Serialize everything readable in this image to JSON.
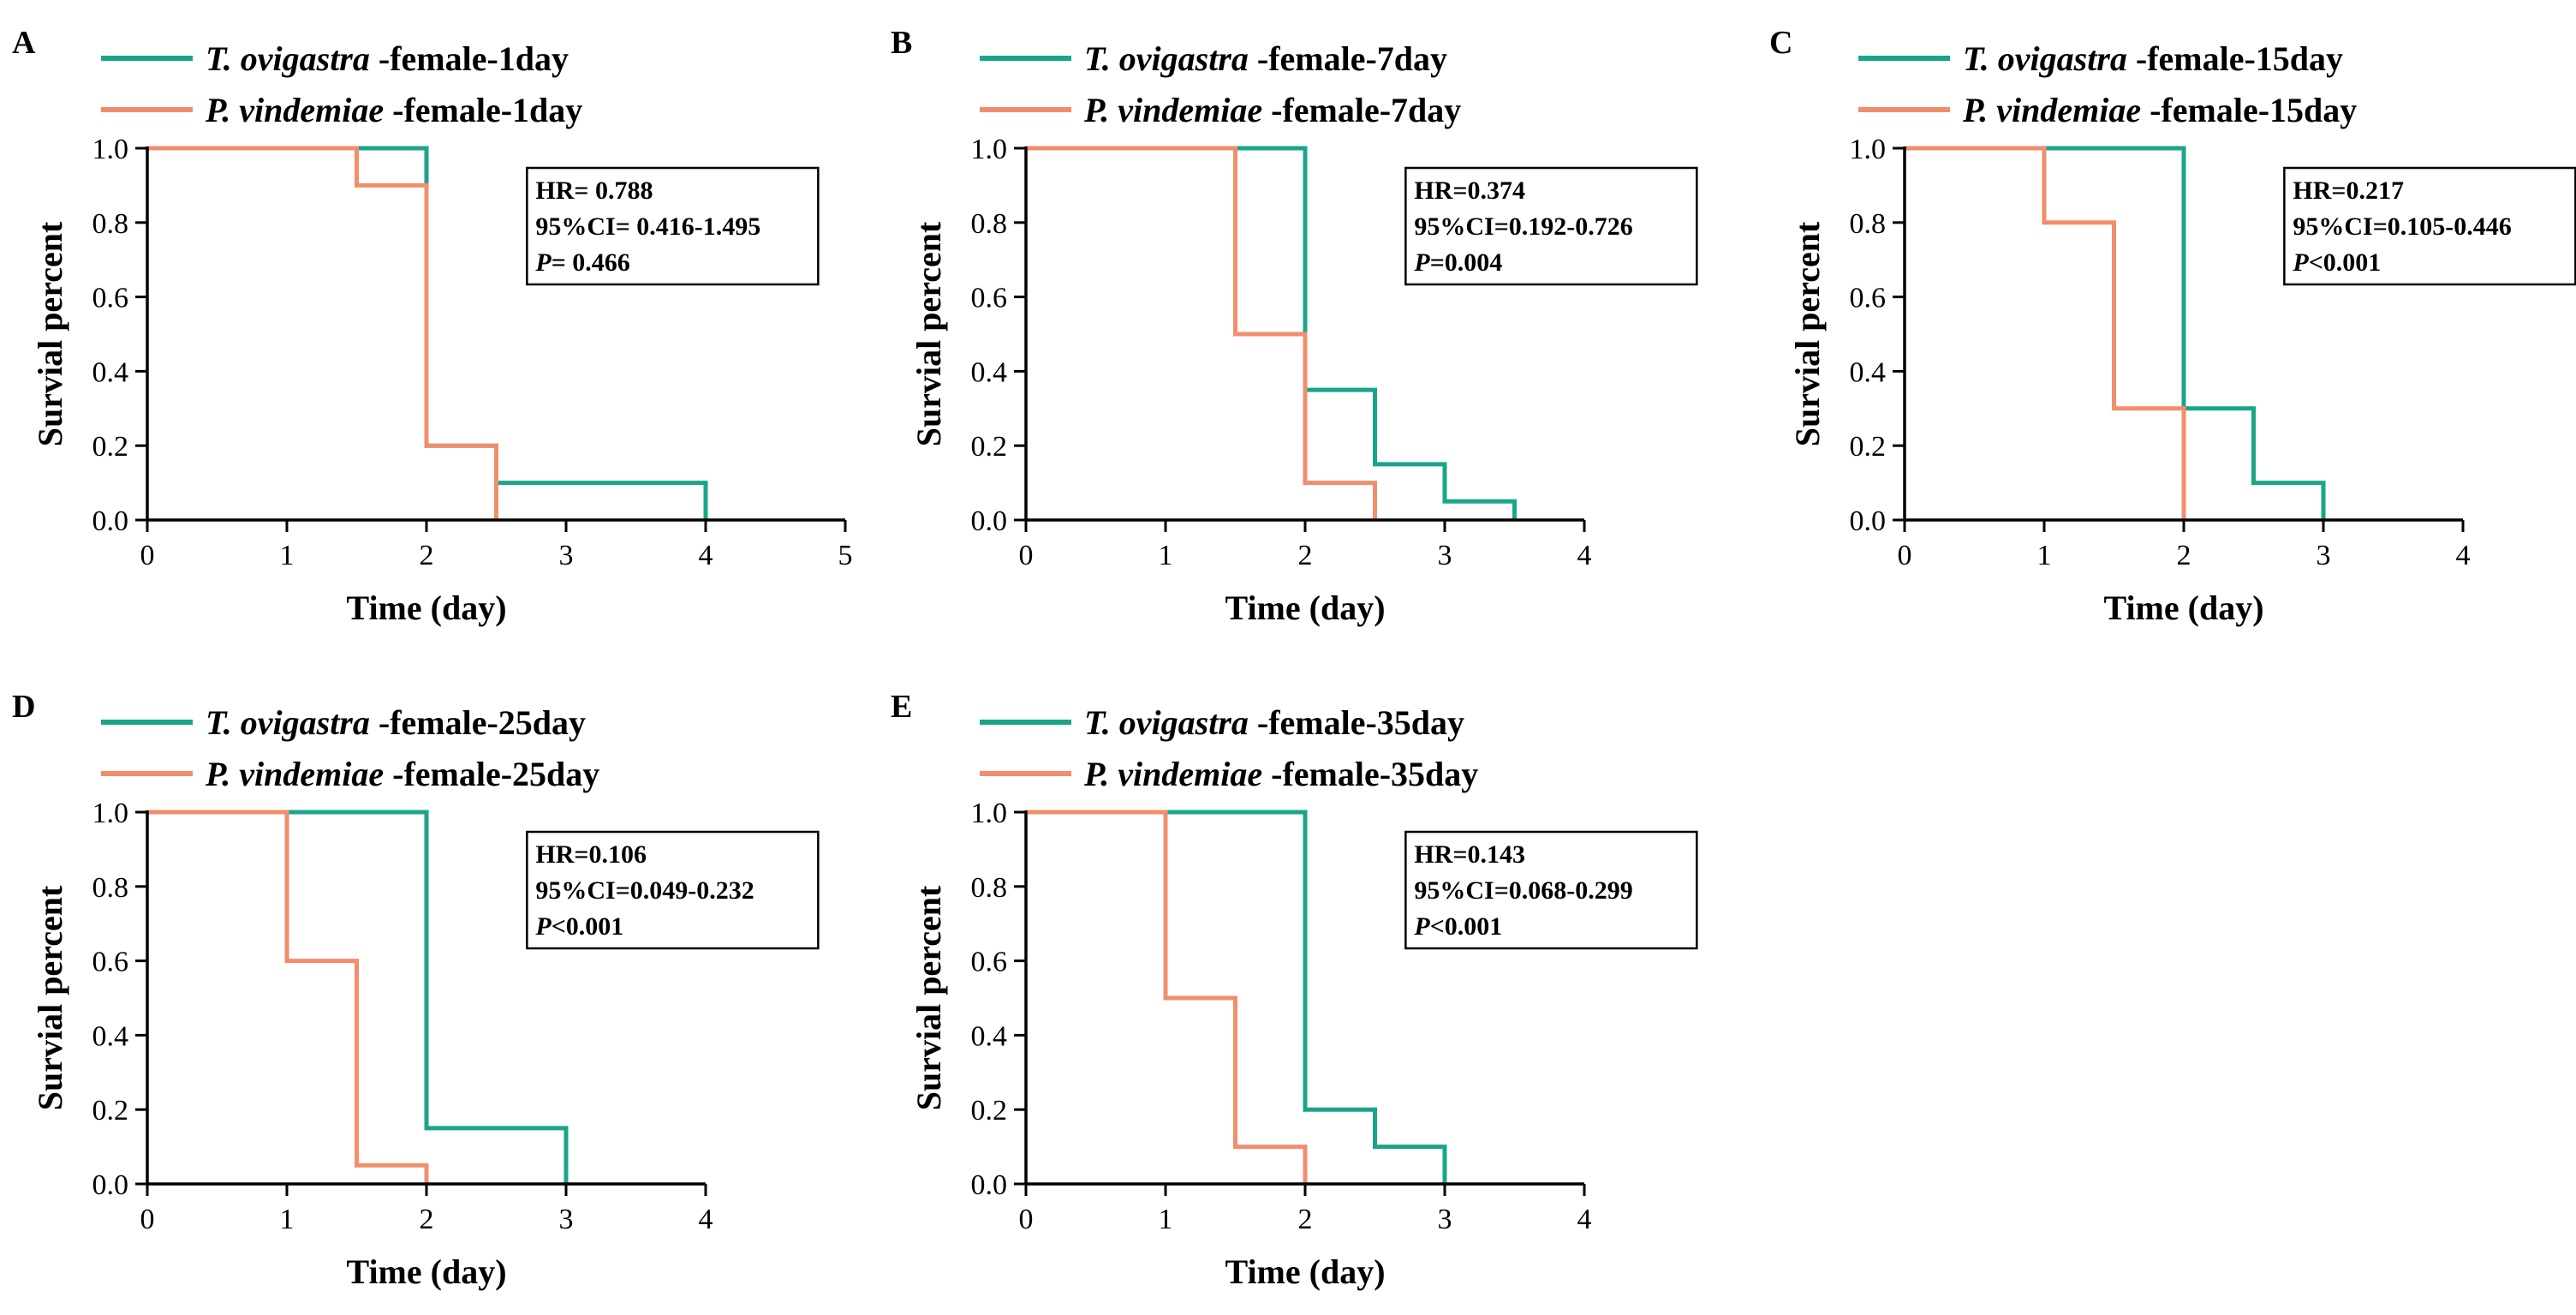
{
  "colors": {
    "teal": "#1aa58a",
    "orange": "#f28e6e",
    "axis": "#000000"
  },
  "chart_data": [
    {
      "panel": "A",
      "type": "line",
      "step": true,
      "xlabel": "Time (day)",
      "ylabel": "Survial percent",
      "xlim": [
        0,
        5
      ],
      "ylim": [
        0,
        1
      ],
      "xticks": [
        "0",
        "1",
        "2",
        "3",
        "4",
        "5"
      ],
      "yticks": [
        "0.0",
        "0.2",
        "0.4",
        "0.6",
        "0.8",
        "1.0"
      ],
      "stats": {
        "hr": "HR= 0.788",
        "ci": "95%CI= 0.416-1.495",
        "p_label": "P",
        "p_value": "= 0.466"
      },
      "series": [
        {
          "name_italic": "T. ovigastra",
          "name_rest": " -female-1day",
          "color": "teal",
          "points": [
            [
              0,
              1
            ],
            [
              2,
              1
            ],
            [
              2,
              0.2
            ],
            [
              2.5,
              0.2
            ],
            [
              2.5,
              0.1
            ],
            [
              4,
              0.1
            ],
            [
              4,
              0
            ]
          ]
        },
        {
          "name_italic": "P. vindemiae",
          "name_rest": " -female-1day",
          "color": "orange",
          "points": [
            [
              0,
              1
            ],
            [
              1.5,
              1
            ],
            [
              1.5,
              0.9
            ],
            [
              2,
              0.9
            ],
            [
              2,
              0.2
            ],
            [
              2.5,
              0.2
            ],
            [
              2.5,
              0
            ]
          ]
        }
      ]
    },
    {
      "panel": "B",
      "type": "line",
      "step": true,
      "xlabel": "Time (day)",
      "ylabel": "Survial percent",
      "xlim": [
        0,
        4
      ],
      "ylim": [
        0,
        1
      ],
      "xticks": [
        "0",
        "1",
        "2",
        "3",
        "4"
      ],
      "yticks": [
        "0.0",
        "0.2",
        "0.4",
        "0.6",
        "0.8",
        "1.0"
      ],
      "stats": {
        "hr": "HR=0.374",
        "ci": "95%CI=0.192-0.726",
        "p_label": "P",
        "p_value": "=0.004"
      },
      "series": [
        {
          "name_italic": "T. ovigastra",
          "name_rest": " -female-7day",
          "color": "teal",
          "points": [
            [
              0,
              1
            ],
            [
              2,
              1
            ],
            [
              2,
              0.35
            ],
            [
              2.5,
              0.35
            ],
            [
              2.5,
              0.15
            ],
            [
              3,
              0.15
            ],
            [
              3,
              0.05
            ],
            [
              3.5,
              0.05
            ],
            [
              3.5,
              0
            ]
          ]
        },
        {
          "name_italic": "P. vindemiae",
          "name_rest": " -female-7day",
          "color": "orange",
          "points": [
            [
              0,
              1
            ],
            [
              1.5,
              1
            ],
            [
              1.5,
              0.5
            ],
            [
              2,
              0.5
            ],
            [
              2,
              0.1
            ],
            [
              2.5,
              0.1
            ],
            [
              2.5,
              0
            ]
          ]
        }
      ]
    },
    {
      "panel": "C",
      "type": "line",
      "step": true,
      "xlabel": "Time (day)",
      "ylabel": "Survial percent",
      "xlim": [
        0,
        4
      ],
      "ylim": [
        0,
        1
      ],
      "xticks": [
        "0",
        "1",
        "2",
        "3",
        "4"
      ],
      "yticks": [
        "0.0",
        "0.2",
        "0.4",
        "0.6",
        "0.8",
        "1.0"
      ],
      "stats": {
        "hr": "HR=0.217",
        "ci": "95%CI=0.105-0.446",
        "p_label": "P",
        "p_value": "<0.001"
      },
      "series": [
        {
          "name_italic": "T. ovigastra",
          "name_rest": " -female-15day",
          "color": "teal",
          "points": [
            [
              0,
              1
            ],
            [
              2,
              1
            ],
            [
              2,
              0.3
            ],
            [
              2.5,
              0.3
            ],
            [
              2.5,
              0.1
            ],
            [
              3,
              0.1
            ],
            [
              3,
              0
            ]
          ]
        },
        {
          "name_italic": "P. vindemiae",
          "name_rest": " -female-15day",
          "color": "orange",
          "points": [
            [
              0,
              1
            ],
            [
              1,
              1
            ],
            [
              1,
              0.8
            ],
            [
              1.5,
              0.8
            ],
            [
              1.5,
              0.3
            ],
            [
              2,
              0.3
            ],
            [
              2,
              0
            ]
          ]
        }
      ]
    },
    {
      "panel": "D",
      "type": "line",
      "step": true,
      "xlabel": "Time (day)",
      "ylabel": "Survial percent",
      "xlim": [
        0,
        4
      ],
      "ylim": [
        0,
        1
      ],
      "xticks": [
        "0",
        "1",
        "2",
        "3",
        "4"
      ],
      "yticks": [
        "0.0",
        "0.2",
        "0.4",
        "0.6",
        "0.8",
        "1.0"
      ],
      "stats": {
        "hr": "HR=0.106",
        "ci": "95%CI=0.049-0.232",
        "p_label": "P",
        "p_value": "<0.001"
      },
      "series": [
        {
          "name_italic": "T. ovigastra",
          "name_rest": " -female-25day",
          "color": "teal",
          "points": [
            [
              0,
              1
            ],
            [
              2,
              1
            ],
            [
              2,
              0.15
            ],
            [
              3,
              0.15
            ],
            [
              3,
              0
            ]
          ]
        },
        {
          "name_italic": "P. vindemiae",
          "name_rest": " -female-25day",
          "color": "orange",
          "points": [
            [
              0,
              1
            ],
            [
              1,
              1
            ],
            [
              1,
              0.6
            ],
            [
              1.5,
              0.6
            ],
            [
              1.5,
              0.05
            ],
            [
              2,
              0.05
            ],
            [
              2,
              0
            ]
          ]
        }
      ]
    },
    {
      "panel": "E",
      "type": "line",
      "step": true,
      "xlabel": "Time (day)",
      "ylabel": "Survial percent",
      "xlim": [
        0,
        4
      ],
      "ylim": [
        0,
        1
      ],
      "xticks": [
        "0",
        "1",
        "2",
        "3",
        "4"
      ],
      "yticks": [
        "0.0",
        "0.2",
        "0.4",
        "0.6",
        "0.8",
        "1.0"
      ],
      "stats": {
        "hr": "HR=0.143",
        "ci": "95%CI=0.068-0.299",
        "p_label": "P",
        "p_value": "<0.001"
      },
      "series": [
        {
          "name_italic": "T. ovigastra",
          "name_rest": " -female-35day",
          "color": "teal",
          "points": [
            [
              0,
              1
            ],
            [
              2,
              1
            ],
            [
              2,
              0.2
            ],
            [
              2.5,
              0.2
            ],
            [
              2.5,
              0.1
            ],
            [
              3,
              0.1
            ],
            [
              3,
              0
            ]
          ]
        },
        {
          "name_italic": "P. vindemiae",
          "name_rest": " -female-35day",
          "color": "orange",
          "points": [
            [
              0,
              1
            ],
            [
              1,
              1
            ],
            [
              1,
              0.5
            ],
            [
              1.5,
              0.5
            ],
            [
              1.5,
              0.1
            ],
            [
              2,
              0.1
            ],
            [
              2,
              0
            ]
          ]
        }
      ]
    }
  ]
}
